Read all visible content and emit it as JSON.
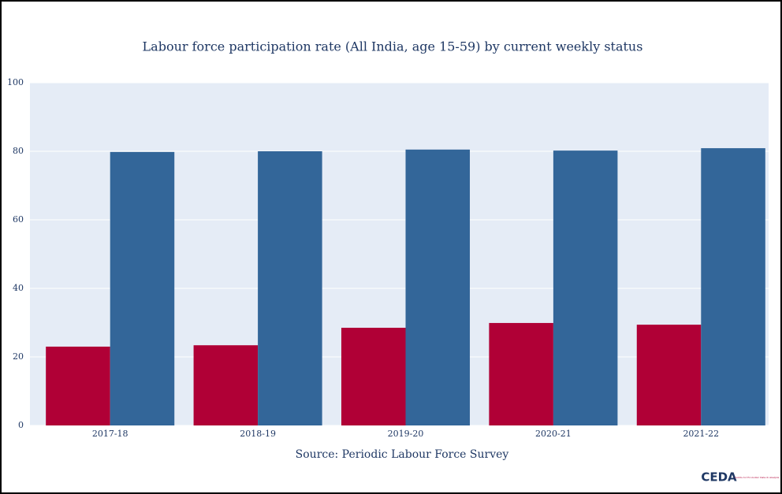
{
  "chart_data": {
    "type": "bar",
    "title": "Labour force participation rate (All India, age 15-59) by current weekly status",
    "annotation": "Source: Periodic Labour Force Survey",
    "logo": "CEDA",
    "logo_caption": "Centre for Economic Data & Analysis",
    "categories": [
      "2017-18",
      "2018-19",
      "2019-20",
      "2020-21",
      "2021-22"
    ],
    "series": [
      {
        "color": "#b00036",
        "values": [
          23.0,
          23.4,
          28.5,
          29.9,
          29.4
        ]
      },
      {
        "color": "#336699",
        "values": [
          79.8,
          80.0,
          80.5,
          80.2,
          80.9
        ]
      }
    ],
    "ylim": [
      0,
      100
    ],
    "yticks": [
      0,
      20,
      40,
      60,
      80,
      100
    ],
    "grid": true
  }
}
